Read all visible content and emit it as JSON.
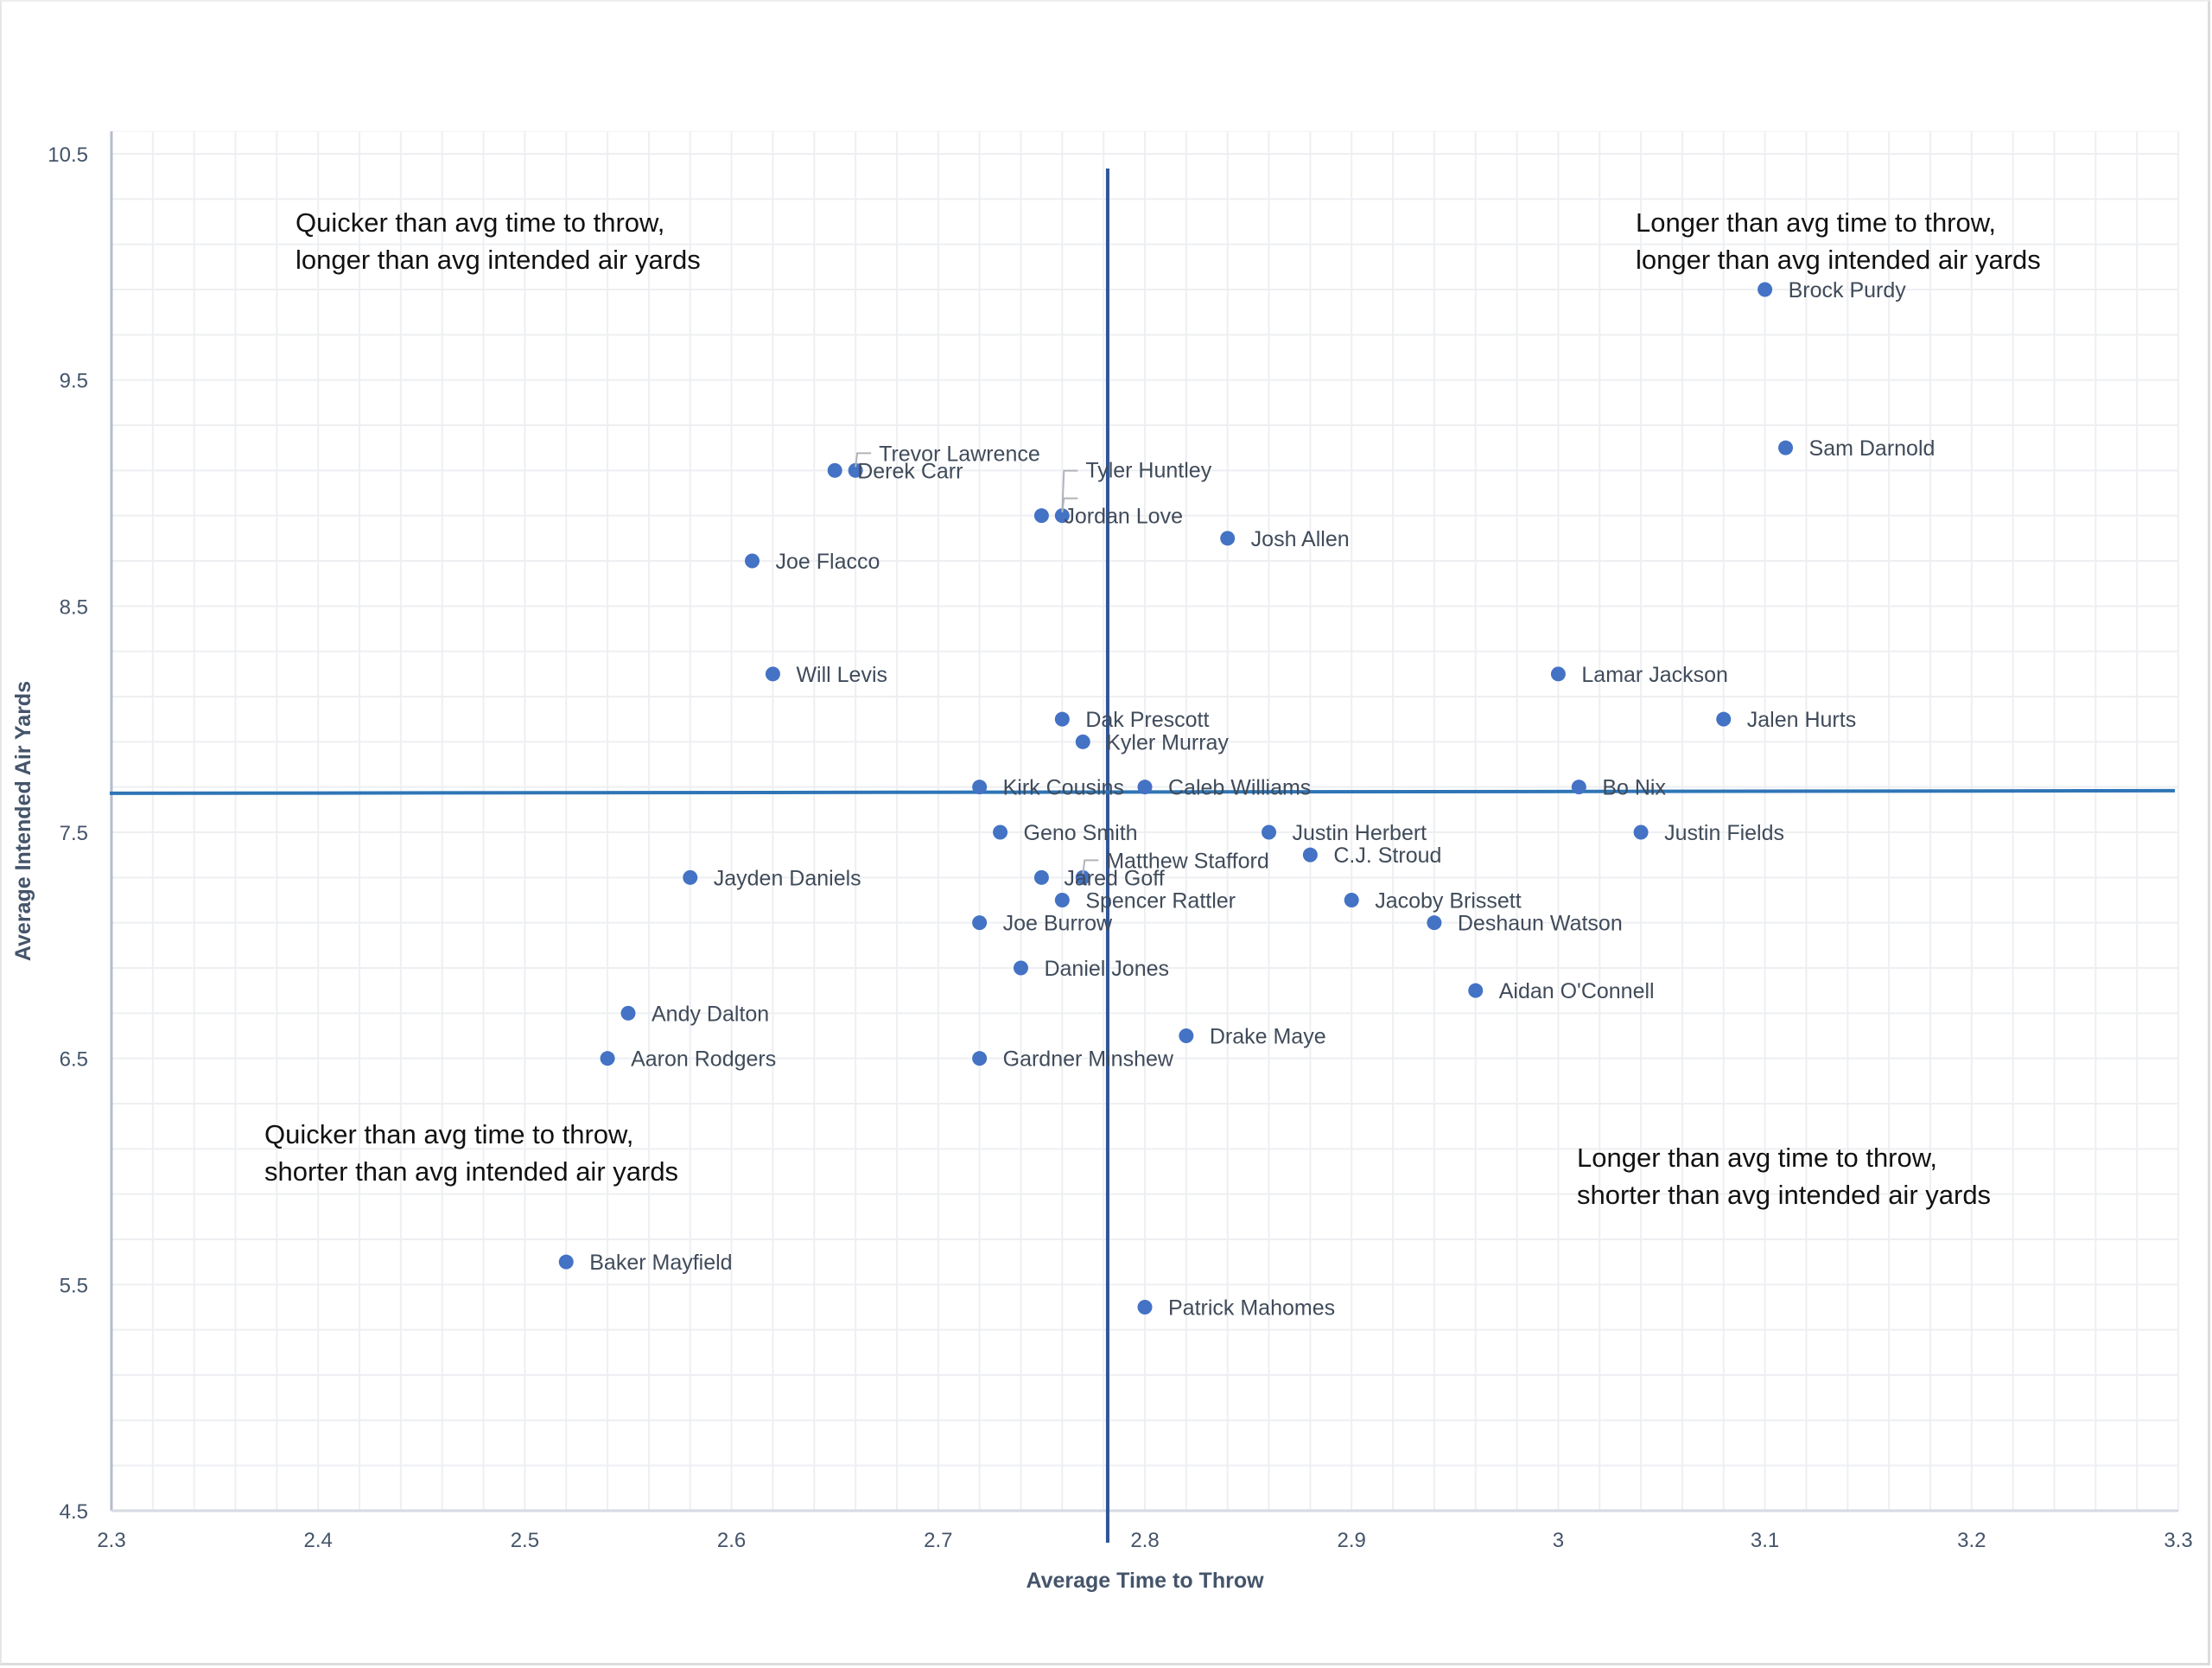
{
  "chart_data": {
    "type": "scatter",
    "title": "",
    "xlabel": "Average Time to Throw",
    "ylabel": "Average Intended Air Yards",
    "xlim": [
      2.3,
      3.3
    ],
    "ylim": [
      4.5,
      10.5
    ],
    "xticks": [
      "2.3",
      "2.4",
      "2.5",
      "2.6",
      "2.7",
      "2.8",
      "2.9",
      "3",
      "3.1",
      "3.2",
      "3.3"
    ],
    "yticks": [
      "4.5",
      "5.5",
      "6.5",
      "7.5",
      "8.5",
      "9.5",
      "10.5"
    ],
    "grid": true,
    "legend": "none",
    "marker_color": "#4472C4",
    "average_lines": {
      "avg_time_to_throw": 2.782,
      "avg_intended_air_yards": 7.68,
      "vertical_color": "#2F5597",
      "horizontal_color": "#2E75B6"
    },
    "quadrant_labels": [
      {
        "position": "top-left",
        "lines": [
          "Quicker than avg time to throw,",
          "longer than avg intended air yards"
        ]
      },
      {
        "position": "top-right",
        "lines": [
          "Longer than avg time to throw,",
          "longer than avg intended air yards"
        ]
      },
      {
        "position": "bottom-left",
        "lines": [
          "Quicker than avg time to throw,",
          "shorter than avg intended air yards"
        ]
      },
      {
        "position": "bottom-right",
        "lines": [
          "Longer than avg time to throw,",
          "shorter than avg intended air yards"
        ]
      }
    ],
    "points": [
      {
        "name": "Brock Purdy",
        "x": 3.1,
        "y": 9.9
      },
      {
        "name": "Sam Darnold",
        "x": 3.11,
        "y": 9.2
      },
      {
        "name": "Trevor Lawrence",
        "x": 2.66,
        "y": 9.1,
        "leader": true
      },
      {
        "name": "Derek Carr",
        "x": 2.65,
        "y": 9.1
      },
      {
        "name": "Tyler Huntley",
        "x": 2.76,
        "y": 8.9,
        "leader": true
      },
      {
        "name": "Jordan Love",
        "x": 2.75,
        "y": 8.9
      },
      {
        "name": "Josh Allen",
        "x": 2.84,
        "y": 8.8
      },
      {
        "name": "Joe Flacco",
        "x": 2.61,
        "y": 8.7
      },
      {
        "name": "Will Levis",
        "x": 2.62,
        "y": 8.2
      },
      {
        "name": "Lamar Jackson",
        "x": 3.0,
        "y": 8.2
      },
      {
        "name": "Dak Prescott",
        "x": 2.76,
        "y": 8.0
      },
      {
        "name": "Jalen Hurts",
        "x": 3.08,
        "y": 8.0
      },
      {
        "name": "Kyler Murray",
        "x": 2.77,
        "y": 7.9
      },
      {
        "name": "Kirk Cousins",
        "x": 2.72,
        "y": 7.7
      },
      {
        "name": "Caleb Williams",
        "x": 2.8,
        "y": 7.7
      },
      {
        "name": "Bo Nix",
        "x": 3.01,
        "y": 7.7
      },
      {
        "name": "Geno Smith",
        "x": 2.73,
        "y": 7.5
      },
      {
        "name": "Justin Herbert",
        "x": 2.86,
        "y": 7.5
      },
      {
        "name": "Justin Fields",
        "x": 3.04,
        "y": 7.5
      },
      {
        "name": "C.J. Stroud",
        "x": 2.88,
        "y": 7.4
      },
      {
        "name": "Matthew Stafford",
        "x": 2.77,
        "y": 7.3,
        "leader": true
      },
      {
        "name": "Jared Goff",
        "x": 2.75,
        "y": 7.3
      },
      {
        "name": "Jayden Daniels",
        "x": 2.58,
        "y": 7.3
      },
      {
        "name": "Spencer Rattler",
        "x": 2.76,
        "y": 7.2
      },
      {
        "name": "Jacoby Brissett",
        "x": 2.9,
        "y": 7.2
      },
      {
        "name": "Joe Burrow",
        "x": 2.72,
        "y": 7.1
      },
      {
        "name": "Deshaun Watson",
        "x": 2.94,
        "y": 7.1
      },
      {
        "name": "Daniel Jones",
        "x": 2.74,
        "y": 6.9
      },
      {
        "name": "Aidan O'Connell",
        "x": 2.96,
        "y": 6.8
      },
      {
        "name": "Andy Dalton",
        "x": 2.55,
        "y": 6.7
      },
      {
        "name": "Drake Maye",
        "x": 2.82,
        "y": 6.6
      },
      {
        "name": "Aaron Rodgers",
        "x": 2.54,
        "y": 6.5
      },
      {
        "name": "Gardner Minshew",
        "x": 2.72,
        "y": 6.5
      },
      {
        "name": "Baker Mayfield",
        "x": 2.52,
        "y": 5.6
      },
      {
        "name": "Patrick Mahomes",
        "x": 2.8,
        "y": 5.4
      }
    ]
  }
}
